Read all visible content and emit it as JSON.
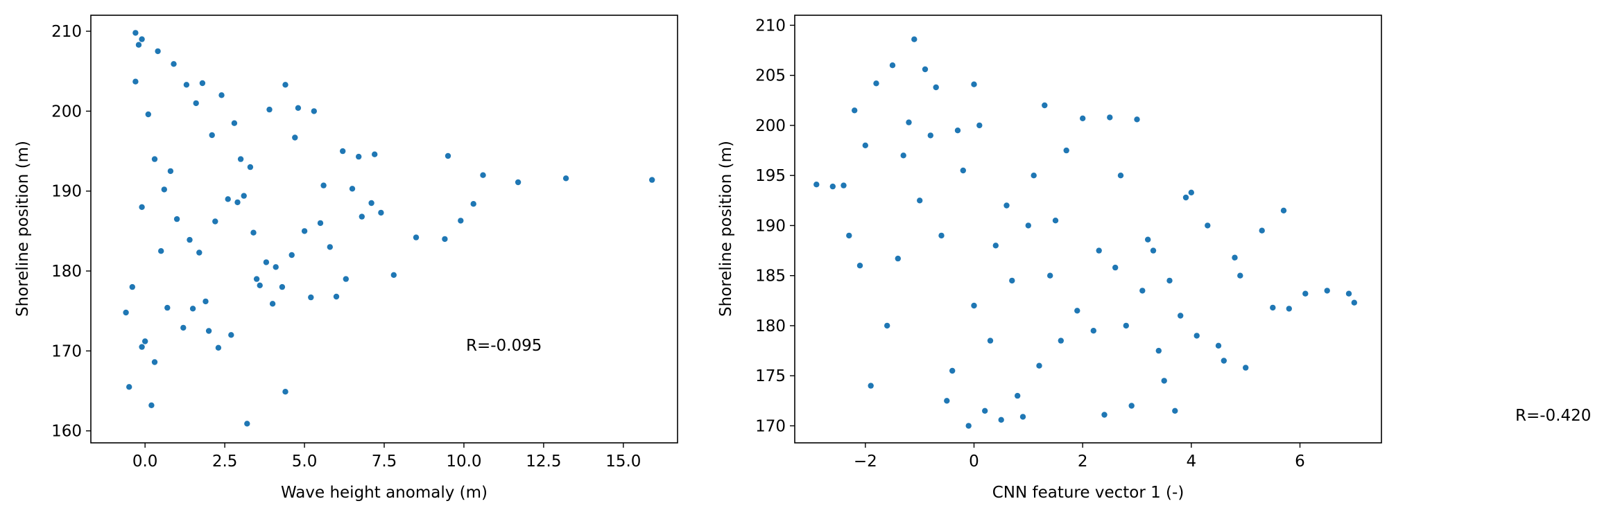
{
  "chart_data": [
    {
      "type": "scatter",
      "xlabel": "Wave height anomaly (m)",
      "ylabel": "Shoreline position (m)",
      "xlim": [
        -1.7,
        16.7
      ],
      "ylim": [
        158.5,
        212.0
      ],
      "xticks": [
        0.0,
        2.5,
        5.0,
        7.5,
        10.0,
        12.5,
        15.0
      ],
      "xtick_labels": [
        "0.0",
        "2.5",
        "5.0",
        "7.5",
        "10.0",
        "12.5",
        "15.0"
      ],
      "yticks": [
        160,
        170,
        180,
        190,
        200,
        210
      ],
      "ytick_labels": [
        "160",
        "170",
        "180",
        "190",
        "200",
        "210"
      ],
      "color": "#1f77b4",
      "annotation": {
        "text": "R=-0.095",
        "x": 10.0,
        "y": 170.3
      },
      "points": {
        "x": [
          -0.3,
          -0.1,
          0.4,
          -0.2,
          0.9,
          -0.1,
          -0.5,
          0.2,
          0.3,
          0.0,
          1.3,
          1.8,
          2.4,
          1.6,
          2.1,
          3.0,
          2.8,
          3.3,
          4.4,
          3.9,
          2.7,
          3.5,
          4.1,
          4.8,
          5.3,
          5.0,
          6.2,
          6.7,
          5.8,
          7.1,
          6.3,
          7.4,
          7.8,
          8.5,
          9.5,
          9.4,
          9.9,
          10.3,
          10.6,
          11.7,
          13.2,
          15.9,
          3.2,
          4.4,
          6.0,
          5.2,
          4.6,
          3.8,
          4.7,
          1.5,
          2.0,
          1.2,
          1.9,
          2.6,
          2.3,
          3.6,
          4.0,
          5.5,
          6.5,
          7.2,
          -0.4,
          0.3,
          -0.1,
          0.6,
          1.0,
          -0.6,
          0.5,
          0.1,
          -0.3,
          0.8,
          2.9,
          3.4,
          1.7,
          2.2,
          5.6,
          6.8,
          4.3,
          3.1,
          0.7,
          1.4
        ],
        "y": [
          209.8,
          209.0,
          207.5,
          208.3,
          205.9,
          170.5,
          165.5,
          163.2,
          168.6,
          171.2,
          203.3,
          203.5,
          202.0,
          201.0,
          197.0,
          194.0,
          198.5,
          193.0,
          203.3,
          200.2,
          172.0,
          179.0,
          180.5,
          200.4,
          200.0,
          185.0,
          195.0,
          194.3,
          183.0,
          188.5,
          179.0,
          187.3,
          179.5,
          184.2,
          194.4,
          184.0,
          186.3,
          188.4,
          192.0,
          191.1,
          191.6,
          191.4,
          160.9,
          164.9,
          176.8,
          176.7,
          182.0,
          181.1,
          196.7,
          175.3,
          172.5,
          172.9,
          176.2,
          189.0,
          170.4,
          178.2,
          175.9,
          186.0,
          190.3,
          194.6,
          178.0,
          194.0,
          188.0,
          190.2,
          186.5,
          174.8,
          182.5,
          199.6,
          203.7,
          192.5,
          188.6,
          184.8,
          182.3,
          186.2,
          190.7,
          186.8,
          178.0,
          189.4,
          175.4,
          183.9
        ]
      }
    },
    {
      "type": "scatter",
      "xlabel": "CNN feature vector 1 (-)",
      "ylabel": "Shoreline position (m)",
      "xlim": [
        -3.3,
        7.5
      ],
      "ylim": [
        168.3,
        211.0
      ],
      "xticks": [
        -2,
        0,
        2,
        4,
        6
      ],
      "xtick_labels": [
        "−2",
        "0",
        "2",
        "4",
        "6"
      ],
      "yticks": [
        170,
        175,
        180,
        185,
        190,
        195,
        200,
        205,
        210
      ],
      "ytick_labels": [
        "170",
        "175",
        "180",
        "185",
        "190",
        "195",
        "200",
        "205",
        "210"
      ],
      "color": "#1f77b4",
      "annotation": {
        "text": "R=-0.420",
        "x": 10.0,
        "y": 171.0
      },
      "points": {
        "x": [
          -2.9,
          -2.6,
          -2.4,
          -2.2,
          -2.0,
          -1.8,
          -1.5,
          -1.1,
          -0.9,
          -0.7,
          -1.3,
          -1.0,
          -0.6,
          -0.2,
          0.1,
          0.4,
          0.7,
          1.0,
          1.4,
          1.9,
          2.3,
          2.8,
          3.1,
          3.4,
          3.8,
          4.1,
          4.6,
          4.9,
          5.3,
          5.7,
          6.1,
          6.5,
          7.0,
          6.9,
          5.8,
          5.5,
          4.5,
          3.9,
          3.3,
          2.6,
          2.2,
          1.6,
          1.2,
          0.8,
          0.2,
          -0.1,
          -0.4,
          0.3,
          0.5,
          0.0,
          -1.6,
          -1.9,
          -2.1,
          -0.8,
          1.3,
          2.0,
          2.5,
          3.0,
          3.6,
          4.3,
          4.8,
          5.0,
          1.7,
          1.1,
          0.6,
          -0.3,
          -1.2,
          -1.4,
          2.9,
          3.7,
          3.5,
          2.4,
          0.9,
          -0.5,
          -2.3,
          4.0,
          1.5,
          0.0,
          2.7,
          3.2
        ],
        "y": [
          194.1,
          193.9,
          194.0,
          201.5,
          198.0,
          204.2,
          206.0,
          208.6,
          205.6,
          203.8,
          197.0,
          192.5,
          189.0,
          195.5,
          200.0,
          188.0,
          184.5,
          190.0,
          185.0,
          181.5,
          187.5,
          180.0,
          183.5,
          177.5,
          181.0,
          179.0,
          176.5,
          185.0,
          189.5,
          191.5,
          183.2,
          183.5,
          182.3,
          183.2,
          181.7,
          181.8,
          178.0,
          192.8,
          187.5,
          185.8,
          179.5,
          178.5,
          176.0,
          173.0,
          171.5,
          170.0,
          175.5,
          178.5,
          170.6,
          182.0,
          180.0,
          174.0,
          186.0,
          199.0,
          202.0,
          200.7,
          200.8,
          200.6,
          184.5,
          190.0,
          186.8,
          175.8,
          197.5,
          195.0,
          192.0,
          199.5,
          200.3,
          186.7,
          172.0,
          171.5,
          174.5,
          171.1,
          170.9,
          172.5,
          189.0,
          193.3,
          190.5,
          204.1,
          195.0,
          188.6
        ]
      }
    }
  ]
}
